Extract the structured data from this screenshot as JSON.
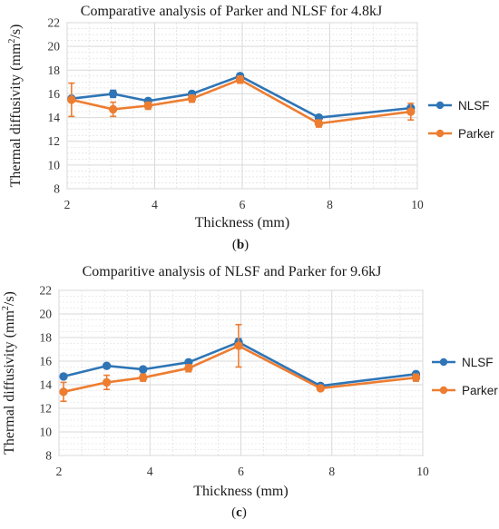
{
  "colors": {
    "NLSF": "#2f75b6",
    "Parker": "#ed7d31",
    "grid": "#d9d9d9",
    "axis": "#a6a6a6"
  },
  "chart_data": [
    {
      "type": "line",
      "title": "Comparative analysis of Parker and NLSF for 4.8kJ",
      "xlabel": "Thickness (mm)",
      "ylabel_main": "Thermal diffusivity (mm",
      "ylabel_sup": "2",
      "ylabel_tail": "/s)",
      "xlim": [
        2,
        10
      ],
      "ylim": [
        8,
        22
      ],
      "xticks": [
        2,
        4,
        6,
        8,
        10
      ],
      "yticks": [
        8,
        10,
        12,
        14,
        16,
        18,
        20,
        22
      ],
      "grid": true,
      "legend_placement": "right",
      "caption_open": "(",
      "caption_letter": "b",
      "caption_close": ")",
      "series": [
        {
          "name": "NLSF",
          "x": [
            2.1,
            3.05,
            3.85,
            4.85,
            5.95,
            7.75,
            9.85
          ],
          "y": [
            15.6,
            16.0,
            15.4,
            16.0,
            17.5,
            14.0,
            14.8
          ],
          "err": [
            0,
            0.3,
            0.2,
            0.2,
            0.2,
            0.2,
            0.2
          ]
        },
        {
          "name": "Parker",
          "x": [
            2.1,
            3.05,
            3.85,
            4.85,
            5.95,
            7.75,
            9.85
          ],
          "y": [
            15.5,
            14.7,
            15.0,
            15.6,
            17.2,
            13.5,
            14.5
          ],
          "err": [
            1.4,
            0.6,
            0.3,
            0.3,
            0.3,
            0.3,
            0.7
          ]
        }
      ]
    },
    {
      "type": "line",
      "title": "Comparitive analysis of NLSF and Parker for 9.6kJ",
      "xlabel": "Thickness (mm)",
      "ylabel_main": "Thermal diffusivity (mm",
      "ylabel_sup": "2",
      "ylabel_tail": "/s)",
      "xlim": [
        2,
        10
      ],
      "ylim": [
        8,
        22
      ],
      "xticks": [
        2,
        4,
        6,
        8,
        10
      ],
      "yticks": [
        8,
        10,
        12,
        14,
        16,
        18,
        20,
        22
      ],
      "grid": true,
      "legend_placement": "right",
      "caption_open": "(",
      "caption_letter": "c",
      "caption_close": ")",
      "series": [
        {
          "name": "NLSF",
          "x": [
            2.1,
            3.05,
            3.85,
            4.85,
            5.95,
            7.75,
            9.85
          ],
          "y": [
            14.7,
            15.6,
            15.3,
            15.9,
            17.6,
            13.9,
            14.9
          ],
          "err": [
            0.2,
            0.2,
            0.2,
            0.2,
            0.3,
            0.2,
            0.2
          ]
        },
        {
          "name": "Parker",
          "x": [
            2.1,
            3.05,
            3.85,
            4.85,
            5.95,
            7.75,
            9.85
          ],
          "y": [
            13.4,
            14.2,
            14.6,
            15.4,
            17.3,
            13.7,
            14.6
          ],
          "err": [
            0.8,
            0.6,
            0.3,
            0.3,
            1.8,
            0.2,
            0.3
          ]
        }
      ]
    }
  ]
}
